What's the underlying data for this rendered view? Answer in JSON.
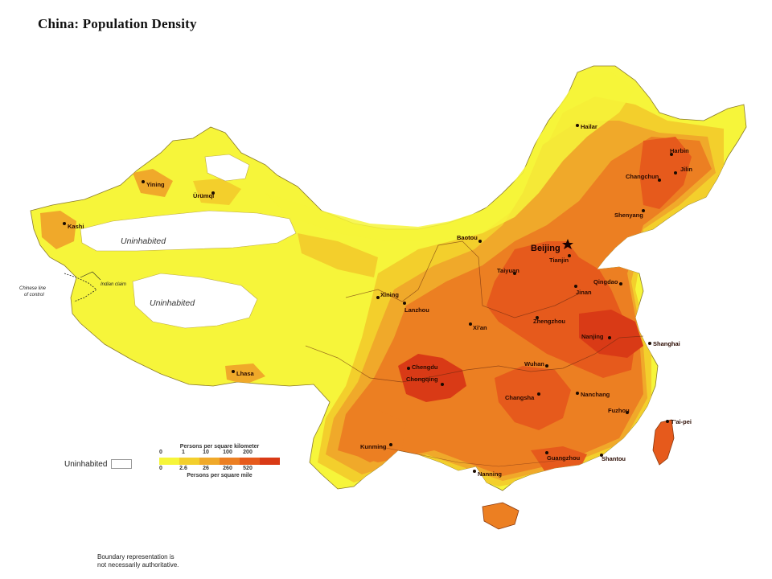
{
  "title": "China: Population Density",
  "legend": {
    "top_title": "Persons per square kilometer",
    "km_values": [
      "0",
      "1",
      "10",
      "100",
      "200"
    ],
    "mile_values": [
      "0",
      "2.6",
      "26",
      "260",
      "520"
    ],
    "bottom_title": "Persons per square mile",
    "colors": [
      "#f6f53a",
      "#f3cf2c",
      "#f0a92a",
      "#ec7f22",
      "#e65a1c",
      "#d93a16"
    ],
    "uninhabited_label": "Uninhabited"
  },
  "regions": {
    "uninhabited_1": "Uninhabited",
    "uninhabited_2": "Uninhabited",
    "indian_claim": "Indian claim",
    "chinese_line_1": "Chinese line",
    "chinese_line_2": "of control"
  },
  "cities": [
    {
      "name": "Hailar"
    },
    {
      "name": "Harbin"
    },
    {
      "name": "Jilin"
    },
    {
      "name": "Changchun"
    },
    {
      "name": "Shenyang"
    },
    {
      "name": "Beijing"
    },
    {
      "name": "Tianjin"
    },
    {
      "name": "Baotou"
    },
    {
      "name": "Taiyuan"
    },
    {
      "name": "Qingdao"
    },
    {
      "name": "Jinan"
    },
    {
      "name": "Zhengzhou"
    },
    {
      "name": "Xi'an"
    },
    {
      "name": "Lanzhou"
    },
    {
      "name": "Xining"
    },
    {
      "name": "Nanjing"
    },
    {
      "name": "Shanghai"
    },
    {
      "name": "Wuhan"
    },
    {
      "name": "Chengdu"
    },
    {
      "name": "Chongqing"
    },
    {
      "name": "Changsha"
    },
    {
      "name": "Nanchang"
    },
    {
      "name": "Fuzhou"
    },
    {
      "name": "T'ai-pei"
    },
    {
      "name": "Guangzhou"
    },
    {
      "name": "Shantou"
    },
    {
      "name": "Nanning"
    },
    {
      "name": "Kunming"
    },
    {
      "name": "Lhasa"
    },
    {
      "name": "Yining"
    },
    {
      "name": "Ürümqi"
    },
    {
      "name": "Kashi"
    }
  ],
  "footnote": {
    "line1": "Boundary representation is",
    "line2": "not necessarily authoritative."
  }
}
